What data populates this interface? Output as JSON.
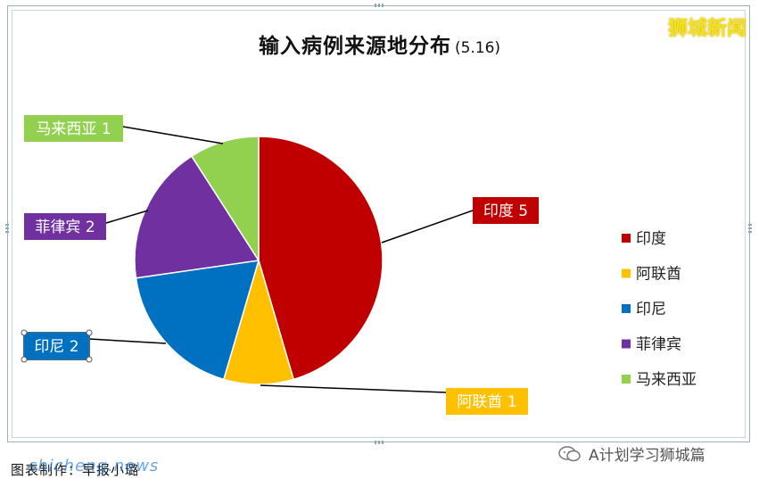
{
  "watermark": "狮城新闻",
  "chart_data": {
    "type": "pie",
    "title": "输入病例来源地分布",
    "subtitle": "(5.16)",
    "categories": [
      "印度",
      "阿联酋",
      "印尼",
      "菲律宾",
      "马来西亚"
    ],
    "values": [
      5,
      1,
      2,
      2,
      1
    ],
    "colors": [
      "#c00000",
      "#ffc000",
      "#0070c0",
      "#7030a0",
      "#92d050"
    ],
    "data_labels": [
      "印度 5",
      "阿联酋 1",
      "印尼 2",
      "菲律宾 2",
      "马来西亚 1"
    ],
    "legend": [
      "印度",
      "阿联酋",
      "印尼",
      "菲律宾",
      "马来西亚"
    ],
    "legend_position": "right"
  },
  "footer": {
    "credit": "图表制作：早报小璐",
    "overlay": "shicheng.news",
    "account": "A计划学习狮城篇"
  }
}
